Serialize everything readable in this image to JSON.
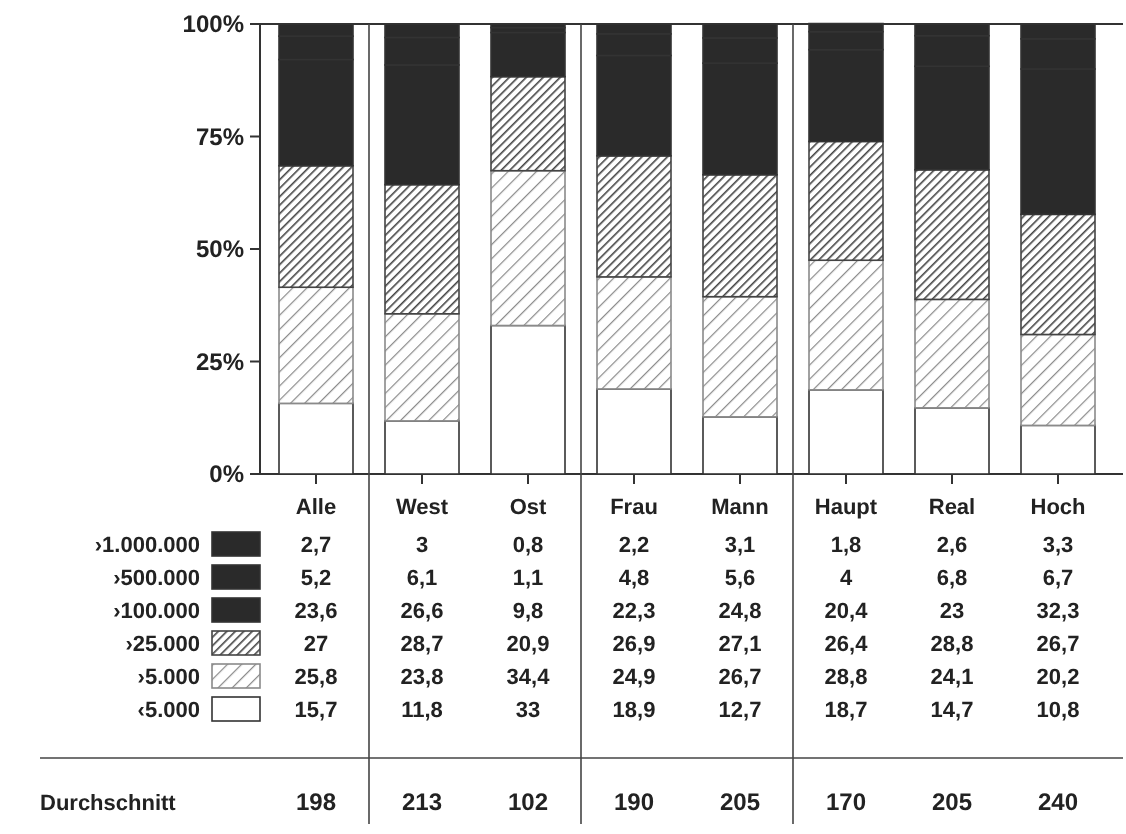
{
  "chart_data": {
    "type": "bar",
    "stacked": true,
    "categories": [
      "Alle",
      "West",
      "Ost",
      "Frau",
      "Mann",
      "Haupt",
      "Real",
      "Hoch"
    ],
    "series": [
      {
        "name": "‹5.000",
        "color": "#ffffff",
        "values": [
          15.7,
          11.8,
          33,
          18.9,
          12.7,
          18.7,
          14.7,
          10.8
        ],
        "value_labels": [
          "15,7",
          "11,8",
          "33",
          "18,9",
          "12,7",
          "18,7",
          "14,7",
          "10,8"
        ]
      },
      {
        "name": "›5.000",
        "color": "#8a8a8a",
        "values": [
          25.8,
          23.8,
          34.4,
          24.9,
          26.7,
          28.8,
          24.1,
          20.2
        ],
        "value_labels": [
          "25,8",
          "23,8",
          "34,4",
          "24,9",
          "26,7",
          "28,8",
          "24,1",
          "20,2"
        ]
      },
      {
        "name": "›25.000",
        "color": "#444444",
        "values": [
          27,
          28.7,
          20.9,
          26.9,
          27.1,
          26.4,
          28.8,
          26.7
        ],
        "value_labels": [
          "27",
          "28,7",
          "20,9",
          "26,9",
          "27,1",
          "26,4",
          "28,8",
          "26,7"
        ]
      },
      {
        "name": "›100.000",
        "color": "#2a2a2a",
        "values": [
          23.6,
          26.6,
          9.8,
          22.3,
          24.8,
          20.4,
          23,
          32.3
        ],
        "value_labels": [
          "23,6",
          "26,6",
          "9,8",
          "22,3",
          "24,8",
          "20,4",
          "23",
          "32,3"
        ]
      },
      {
        "name": "›500.000",
        "color": "#2a2a2a",
        "values": [
          5.2,
          6.1,
          1.1,
          4.8,
          5.6,
          4,
          6.8,
          6.7
        ],
        "value_labels": [
          "5,2",
          "6,1",
          "1,1",
          "4,8",
          "5,6",
          "4",
          "6,8",
          "6,7"
        ]
      },
      {
        "name": "›1.000.000",
        "color": "#2a2a2a",
        "values": [
          2.7,
          3,
          0.8,
          2.2,
          3.1,
          1.8,
          2.6,
          3.3
        ],
        "value_labels": [
          "2,7",
          "3",
          "0,8",
          "2,2",
          "3,1",
          "1,8",
          "2,6",
          "3,3"
        ]
      }
    ],
    "ylim": [
      0,
      100
    ],
    "yticks": [
      {
        "value": 0,
        "label": "0%"
      },
      {
        "value": 25,
        "label": "25%"
      },
      {
        "value": 50,
        "label": "50%"
      },
      {
        "value": 75,
        "label": "75%"
      },
      {
        "value": 100,
        "label": "100%"
      }
    ],
    "legend": "bottom left",
    "annotations": [
      "Durchschnitt",
      "198",
      "213",
      "102",
      "190",
      "205",
      "170",
      "205",
      "240"
    ]
  }
}
